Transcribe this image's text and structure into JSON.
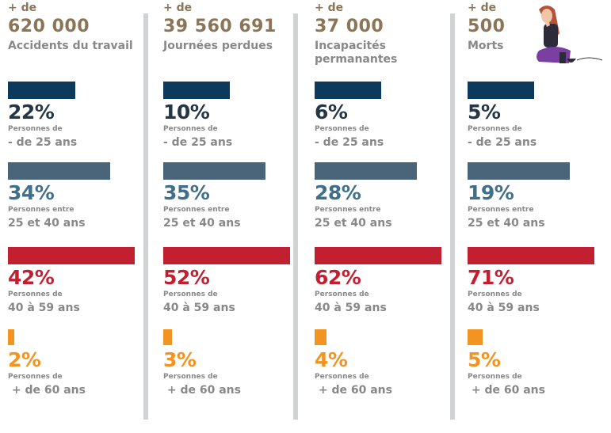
{
  "colors": {
    "pre": "#8c7456",
    "bars": [
      "#0b3a5c",
      "#4a647a",
      "#c21f30",
      "#f39322"
    ],
    "pcts": [
      "#243746",
      "#3f6f8a",
      "#c21f30",
      "#f39322"
    ]
  },
  "groups": [
    {
      "label": "Personnes de",
      "range": "- de 25 ans"
    },
    {
      "label": "Personnes entre",
      "range": "25 et 40 ans"
    },
    {
      "label": "Personnes de",
      "range": "40 à 59 ans"
    },
    {
      "label": "Personnes de",
      "range": " + de 60 ans"
    }
  ],
  "columns": [
    {
      "prefix": "+ de",
      "number": "620 000",
      "subtitle": "Accidents du travail",
      "values": [
        22,
        34,
        42,
        2
      ],
      "pcts": [
        "22%",
        "34%",
        "42%",
        "2%"
      ]
    },
    {
      "prefix": "+ de",
      "number": "39 560 691",
      "subtitle": "Journées perdues",
      "values": [
        10,
        35,
        52,
        3
      ],
      "pcts": [
        "10%",
        "35%",
        "52%",
        "3%"
      ]
    },
    {
      "prefix": "+ de",
      "number": "37 000",
      "subtitle": "Incapacités permanantes",
      "values": [
        6,
        28,
        62,
        4
      ],
      "pcts": [
        "6%",
        "28%",
        "62%",
        "4%"
      ]
    },
    {
      "prefix": "+ de",
      "number": "500",
      "subtitle": "Morts",
      "values": [
        5,
        19,
        71,
        5
      ],
      "pcts": [
        "5%",
        "19%",
        "71%",
        "5%"
      ]
    }
  ]
}
